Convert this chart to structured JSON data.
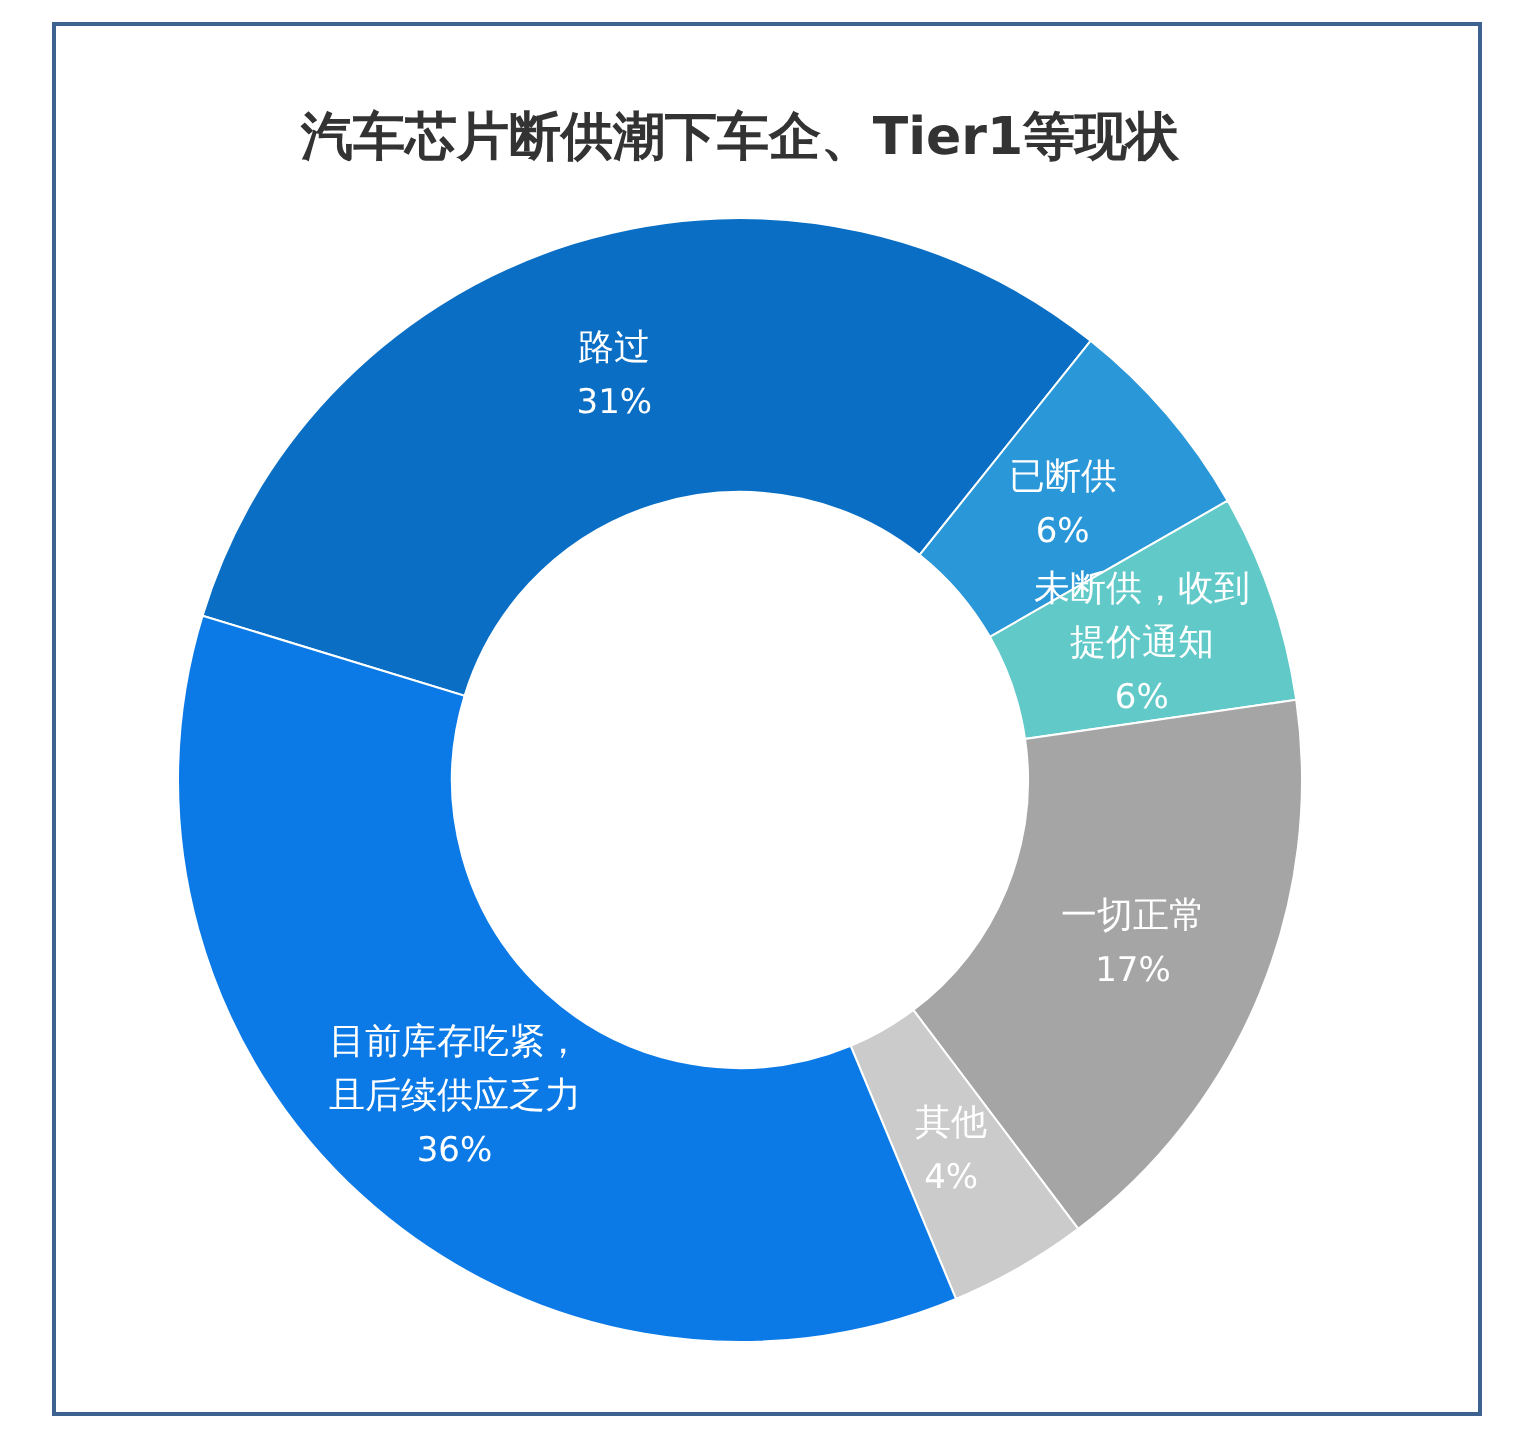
{
  "chart_data": {
    "type": "donut",
    "title": "汽车芯片断供潮下车企、Tier1等现状",
    "categories": [
      "路过",
      "已断供",
      "未断供，收到提价通知",
      "一切正常",
      "其他",
      "目前库存吃紧，且后续供应乏力"
    ],
    "values": [
      31,
      6,
      6,
      17,
      4,
      36
    ],
    "value_labels": [
      "31%",
      "6%",
      "6%",
      "17%",
      "4%",
      "36%"
    ],
    "colors": [
      "#0a6fc4",
      "#2a97d8",
      "#62c9c9",
      "#a5a5a5",
      "#cbcbcb",
      "#0b7ae6"
    ]
  }
}
